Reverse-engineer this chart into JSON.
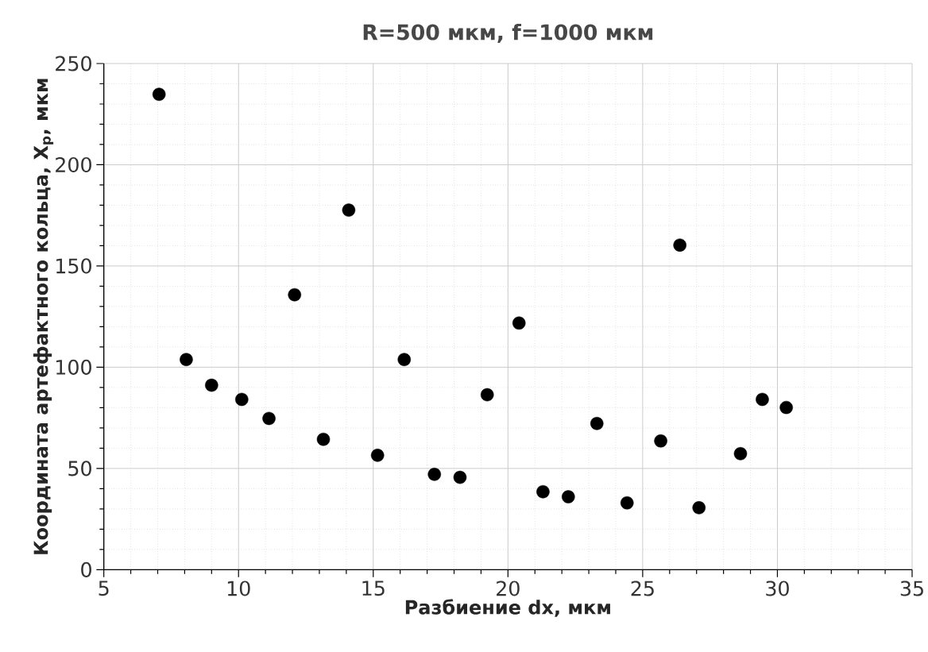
{
  "chart_data": {
    "type": "scatter",
    "title": "R=500 мкм, f=1000 мкм",
    "xlabel": "Разбиение dx, мкм",
    "ylabel": "Координата артефактного кольца, X$_{p}$, мкм",
    "x": [
      7.05,
      8.06,
      9.0,
      10.12,
      11.13,
      12.08,
      13.15,
      14.09,
      15.16,
      16.15,
      17.27,
      18.22,
      19.23,
      20.41,
      21.3,
      22.24,
      23.3,
      24.42,
      25.67,
      26.38,
      27.09,
      28.63,
      29.44,
      30.33
    ],
    "series": [
      {
        "color": "#000000",
        "values": [
          234.8,
          103.8,
          91.1,
          84.1,
          74.7,
          135.8,
          64.4,
          177.6,
          56.5,
          103.8,
          47.1,
          45.6,
          86.4,
          121.8,
          38.5,
          36.0,
          72.2,
          33.0,
          63.6,
          160.3,
          30.6,
          57.3,
          84.1,
          80.1
        ]
      }
    ],
    "xlim": [
      5,
      35
    ],
    "ylim": [
      0,
      250
    ],
    "xticks": [
      5,
      10,
      15,
      20,
      25,
      30,
      35
    ],
    "yticks": [
      0,
      50,
      100,
      150,
      200,
      250
    ],
    "grid": true,
    "marker": "circle"
  }
}
